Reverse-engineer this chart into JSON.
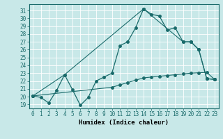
{
  "xlabel": "Humidex (Indice chaleur)",
  "background_color": "#c8e8e8",
  "grid_color": "#a0c8c8",
  "line_color": "#1a6b6b",
  "xlim": [
    -0.5,
    23.5
  ],
  "ylim": [
    18.5,
    31.8
  ],
  "yticks": [
    19,
    20,
    21,
    22,
    23,
    24,
    25,
    26,
    27,
    28,
    29,
    30,
    31
  ],
  "xticks": [
    0,
    1,
    2,
    3,
    4,
    5,
    6,
    7,
    8,
    9,
    10,
    11,
    12,
    13,
    14,
    15,
    16,
    17,
    18,
    19,
    20,
    21,
    22,
    23
  ],
  "series1_x": [
    0,
    1,
    2,
    3,
    4,
    5,
    6,
    7,
    8,
    9,
    10,
    11,
    12,
    13,
    14,
    15,
    16,
    17,
    18,
    19,
    20,
    21,
    22,
    23
  ],
  "series1_y": [
    20.1,
    19.9,
    19.2,
    20.8,
    22.8,
    20.9,
    18.9,
    19.9,
    22.0,
    22.5,
    23.0,
    26.5,
    27.0,
    28.8,
    31.2,
    30.5,
    30.3,
    28.5,
    28.8,
    27.0,
    27.0,
    26.0,
    22.3,
    22.2
  ],
  "series2_x": [
    0,
    4,
    14,
    19,
    20,
    21,
    22,
    23
  ],
  "series2_y": [
    20.1,
    22.8,
    31.2,
    27.0,
    27.0,
    26.0,
    22.3,
    22.2
  ],
  "series3_x": [
    0,
    10,
    11,
    12,
    13,
    14,
    15,
    16,
    17,
    18,
    19,
    20,
    21,
    22,
    23
  ],
  "series3_y": [
    20.1,
    21.2,
    21.5,
    21.8,
    22.1,
    22.4,
    22.5,
    22.6,
    22.7,
    22.8,
    22.9,
    23.0,
    23.05,
    23.1,
    22.2
  ],
  "marker_size": 2.5,
  "font_size_ticks": 5.5,
  "font_size_label": 6.5
}
